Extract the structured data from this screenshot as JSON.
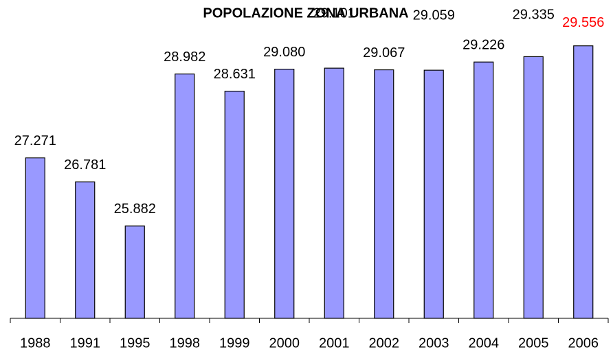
{
  "chart_data": {
    "type": "bar",
    "title": "POPOLAZIONE ZONA URBANA",
    "categories": [
      "1988",
      "1991",
      "1995",
      "1998",
      "1999",
      "2000",
      "2001",
      "2002",
      "2003",
      "2004",
      "2005",
      "2006"
    ],
    "values": [
      27271,
      26781,
      25882,
      28982,
      28631,
      29080,
      29101,
      29067,
      29059,
      29226,
      29335,
      29556
    ],
    "value_labels": [
      "27.271",
      "26.781",
      "25.882",
      "28.982",
      "28.631",
      "29.080",
      "29.101",
      "29.067",
      "29.059",
      "29.226",
      "29.335",
      "29.556"
    ],
    "value_label_colors": [
      "#000000",
      "#000000",
      "#000000",
      "#000000",
      "#000000",
      "#000000",
      "#000000",
      "#000000",
      "#000000",
      "#000000",
      "#000000",
      "#ff0000"
    ],
    "color": "#9999ff",
    "ylim": [
      24000,
      30000
    ],
    "grid": false
  }
}
